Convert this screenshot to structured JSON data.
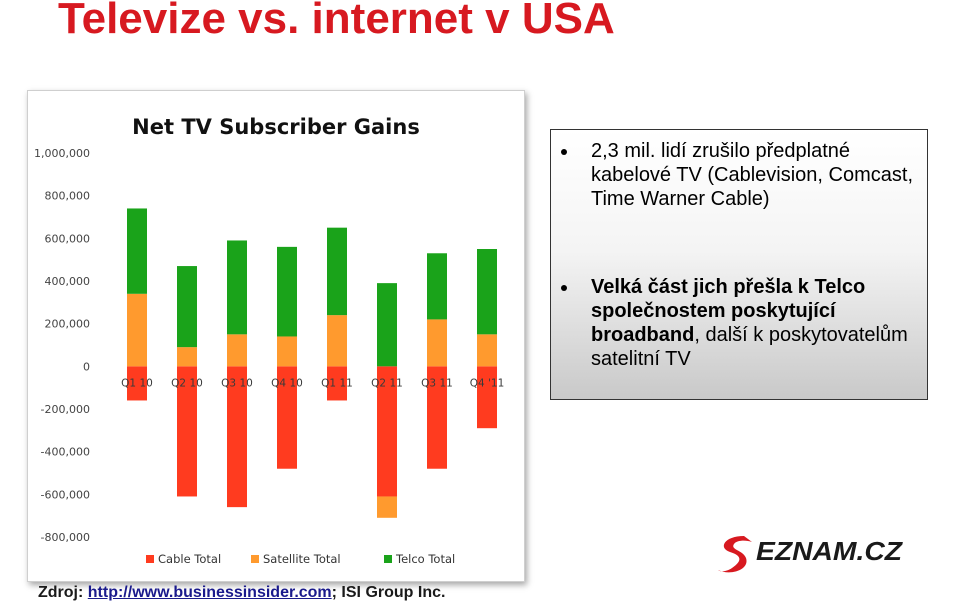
{
  "slide": {
    "title": "Televize vs. internet v USA"
  },
  "info_box": {
    "bullet1": {
      "bold": "2,3 mil. lidí zrušilo předplatné kabelové TV",
      "rest": " (Cablevision, Comcast, Time Warner Cable)"
    },
    "bullet2": {
      "bold": "Velká část jich přešla k Telco společnostem poskytující broadband",
      "rest": ", další k poskytovatelům satelitní TV"
    }
  },
  "logo": {
    "text": "SEZNAM.CZ",
    "accent_color": "#d71920"
  },
  "source": {
    "label": "Zdroj: ",
    "link": "http://www.businessinsider.com",
    "rest": "; ISI Group Inc."
  },
  "colors": {
    "title": "#d71920",
    "cable": "#ff3b1f",
    "satellite": "#ff9a2e",
    "telco": "#1aa31a"
  },
  "chart_data": {
    "type": "bar",
    "stacked": true,
    "title": "Net TV Subscriber Gains",
    "categories": [
      "Q1 10",
      "Q2 10",
      "Q3 10",
      "Q4 10",
      "Q1 11",
      "Q2 11",
      "Q3 11",
      "Q4 '11"
    ],
    "series": [
      {
        "name": "Cable Total",
        "color": "#ff3b1f",
        "values": [
          -160000,
          -610000,
          -660000,
          -480000,
          -160000,
          -610000,
          -480000,
          -290000
        ]
      },
      {
        "name": "Satellite Total",
        "color": "#ff9a2e",
        "values": [
          340000,
          90000,
          150000,
          140000,
          240000,
          -100000,
          220000,
          150000
        ]
      },
      {
        "name": "Telco Total",
        "color": "#1aa31a",
        "values": [
          400000,
          380000,
          440000,
          420000,
          410000,
          390000,
          310000,
          400000
        ]
      }
    ],
    "y_ticks": [
      "1,000,000",
      "800,000",
      "600,000",
      "400,000",
      "200,000",
      "0",
      "-200,000",
      "-400,000",
      "-600,000",
      "-800,000"
    ],
    "ylim": [
      -800000,
      1000000
    ],
    "legend_position": "bottom",
    "grid": false
  }
}
